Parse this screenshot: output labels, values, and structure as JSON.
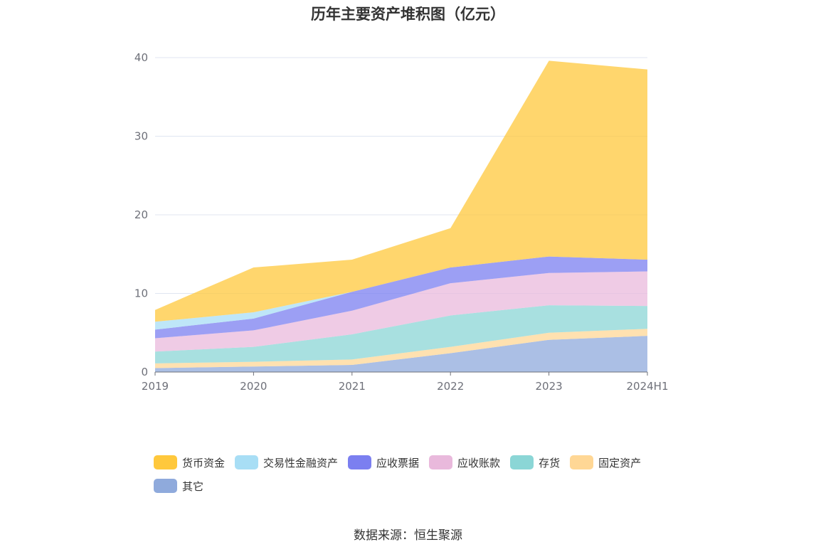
{
  "title": "历年主要资产堆积图（亿元）",
  "source": "数据来源：恒生聚源",
  "chart_data": {
    "type": "area",
    "stacked": true,
    "categories": [
      "2019",
      "2020",
      "2021",
      "2022",
      "2023",
      "2024H1"
    ],
    "ylim": [
      0,
      40
    ],
    "yticks": [
      "0",
      "10",
      "20",
      "30",
      "40"
    ],
    "grid": true,
    "legend_position": "bottom",
    "series": [
      {
        "name": "其它",
        "color": "#8faadc",
        "values": [
          0.5,
          0.7,
          0.9,
          2.4,
          4.1,
          4.6
        ]
      },
      {
        "name": "固定资产",
        "color": "#ffd795",
        "values": [
          0.6,
          0.6,
          0.7,
          0.8,
          0.9,
          0.9
        ]
      },
      {
        "name": "存货",
        "color": "#8bd6d6",
        "values": [
          1.5,
          1.9,
          3.2,
          4.0,
          3.5,
          2.9
        ]
      },
      {
        "name": "应收账款",
        "color": "#e9b9dc",
        "values": [
          1.7,
          2.1,
          3.0,
          4.1,
          4.1,
          4.4
        ]
      },
      {
        "name": "应收票据",
        "color": "#7b7ff0",
        "values": [
          1.1,
          1.5,
          2.4,
          2.0,
          2.1,
          1.5
        ]
      },
      {
        "name": "交易性金融资产",
        "color": "#a8def5",
        "values": [
          1.0,
          0.8,
          0.0,
          0.0,
          0.0,
          0.0
        ]
      },
      {
        "name": "货币资金",
        "color": "#ffc83c",
        "values": [
          1.5,
          5.7,
          4.1,
          5.0,
          24.9,
          24.2
        ]
      }
    ],
    "legend_order": [
      "货币资金",
      "交易性金融资产",
      "应收票据",
      "应收账款",
      "存货",
      "固定资产",
      "其它"
    ]
  }
}
